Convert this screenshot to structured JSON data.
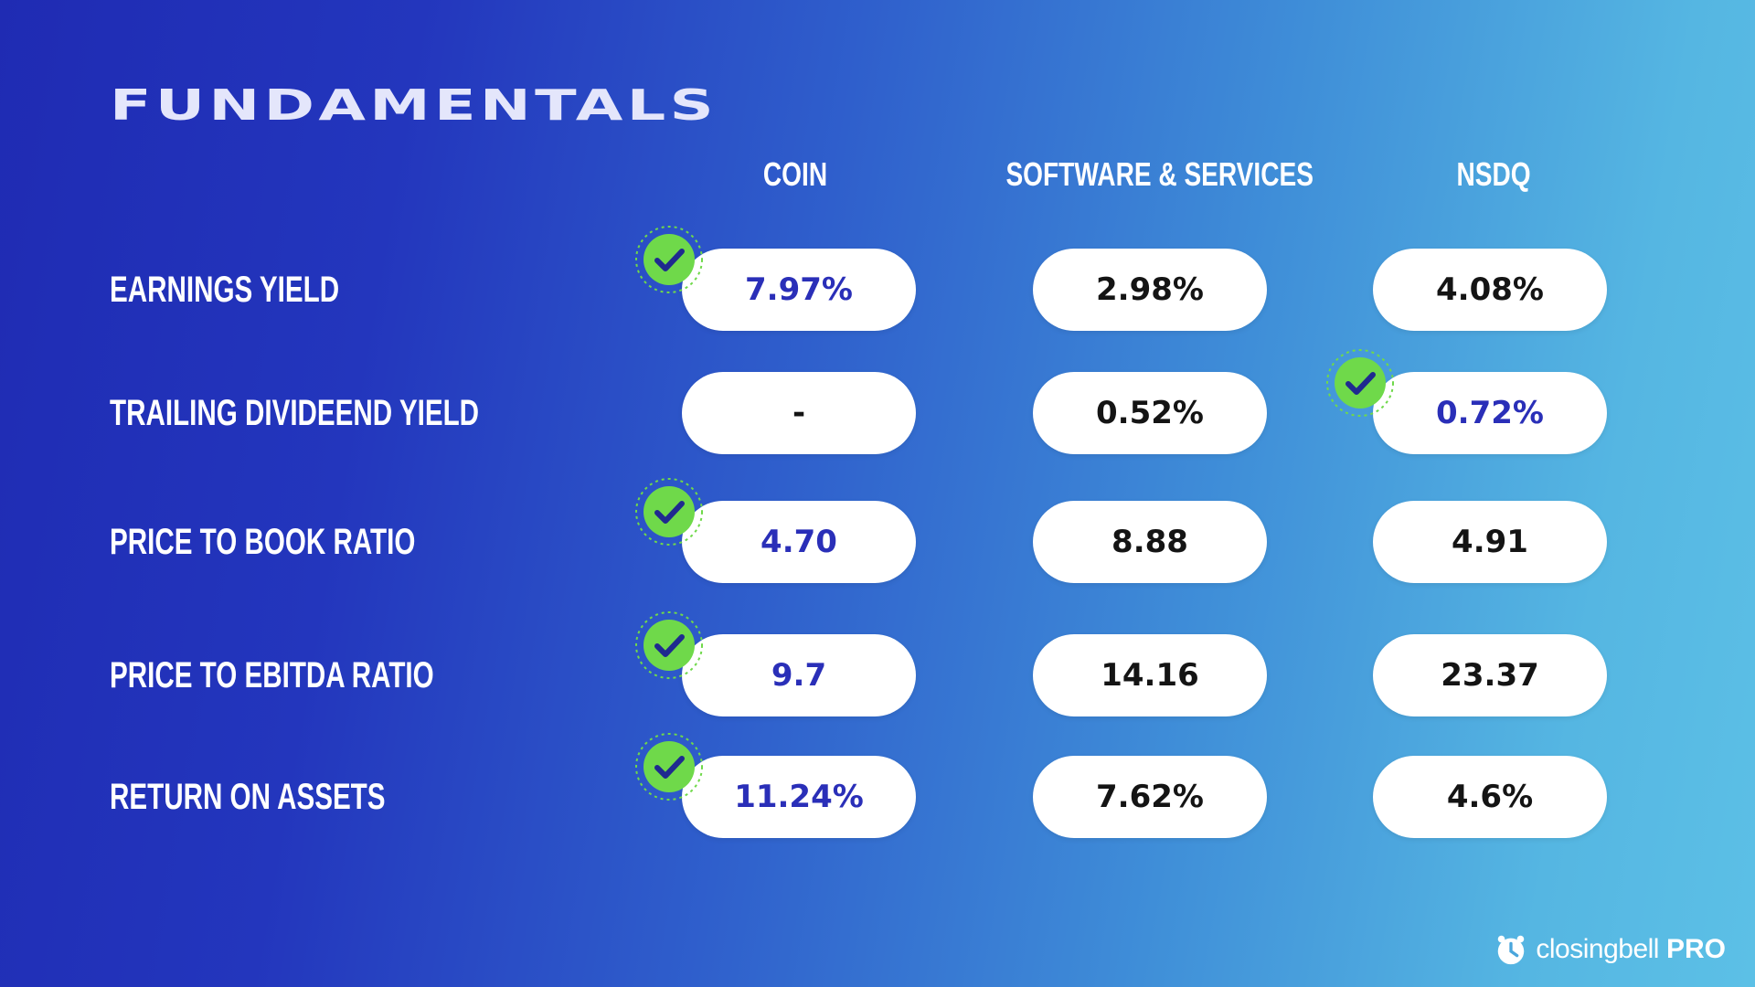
{
  "title": "FUNDAMENTALS",
  "columns": [
    "COIN",
    "SOFTWARE & SERVICES",
    "NSDQ"
  ],
  "rows": [
    {
      "label": "EARNINGS YIELD",
      "values": [
        "7.97%",
        "2.98%",
        "4.08%"
      ],
      "winner_column": 0
    },
    {
      "label": "TRAILING DIVIDEEND YIELD",
      "values": [
        "-",
        "0.52%",
        "0.72%"
      ],
      "winner_column": 2
    },
    {
      "label": "PRICE TO BOOK RATIO",
      "values": [
        "4.70",
        "8.88",
        "4.91"
      ],
      "winner_column": 0
    },
    {
      "label": "PRICE TO EBITDA RATIO",
      "values": [
        "9.7",
        "14.16",
        "23.37"
      ],
      "winner_column": 0
    },
    {
      "label": "RETURN ON ASSETS",
      "values": [
        "11.24%",
        "7.62%",
        "4.6%"
      ],
      "winner_column": 0
    }
  ],
  "winner_icon": "check-circle-icon",
  "colors": {
    "winner_text": "#2a2fb8",
    "normal_text": "#141414",
    "check_fill": "#6fd94a",
    "check_mark": "#1f2a8f"
  },
  "brand": {
    "name": "closingbell",
    "suffix": "PRO",
    "icon": "alarm-bell-icon"
  }
}
